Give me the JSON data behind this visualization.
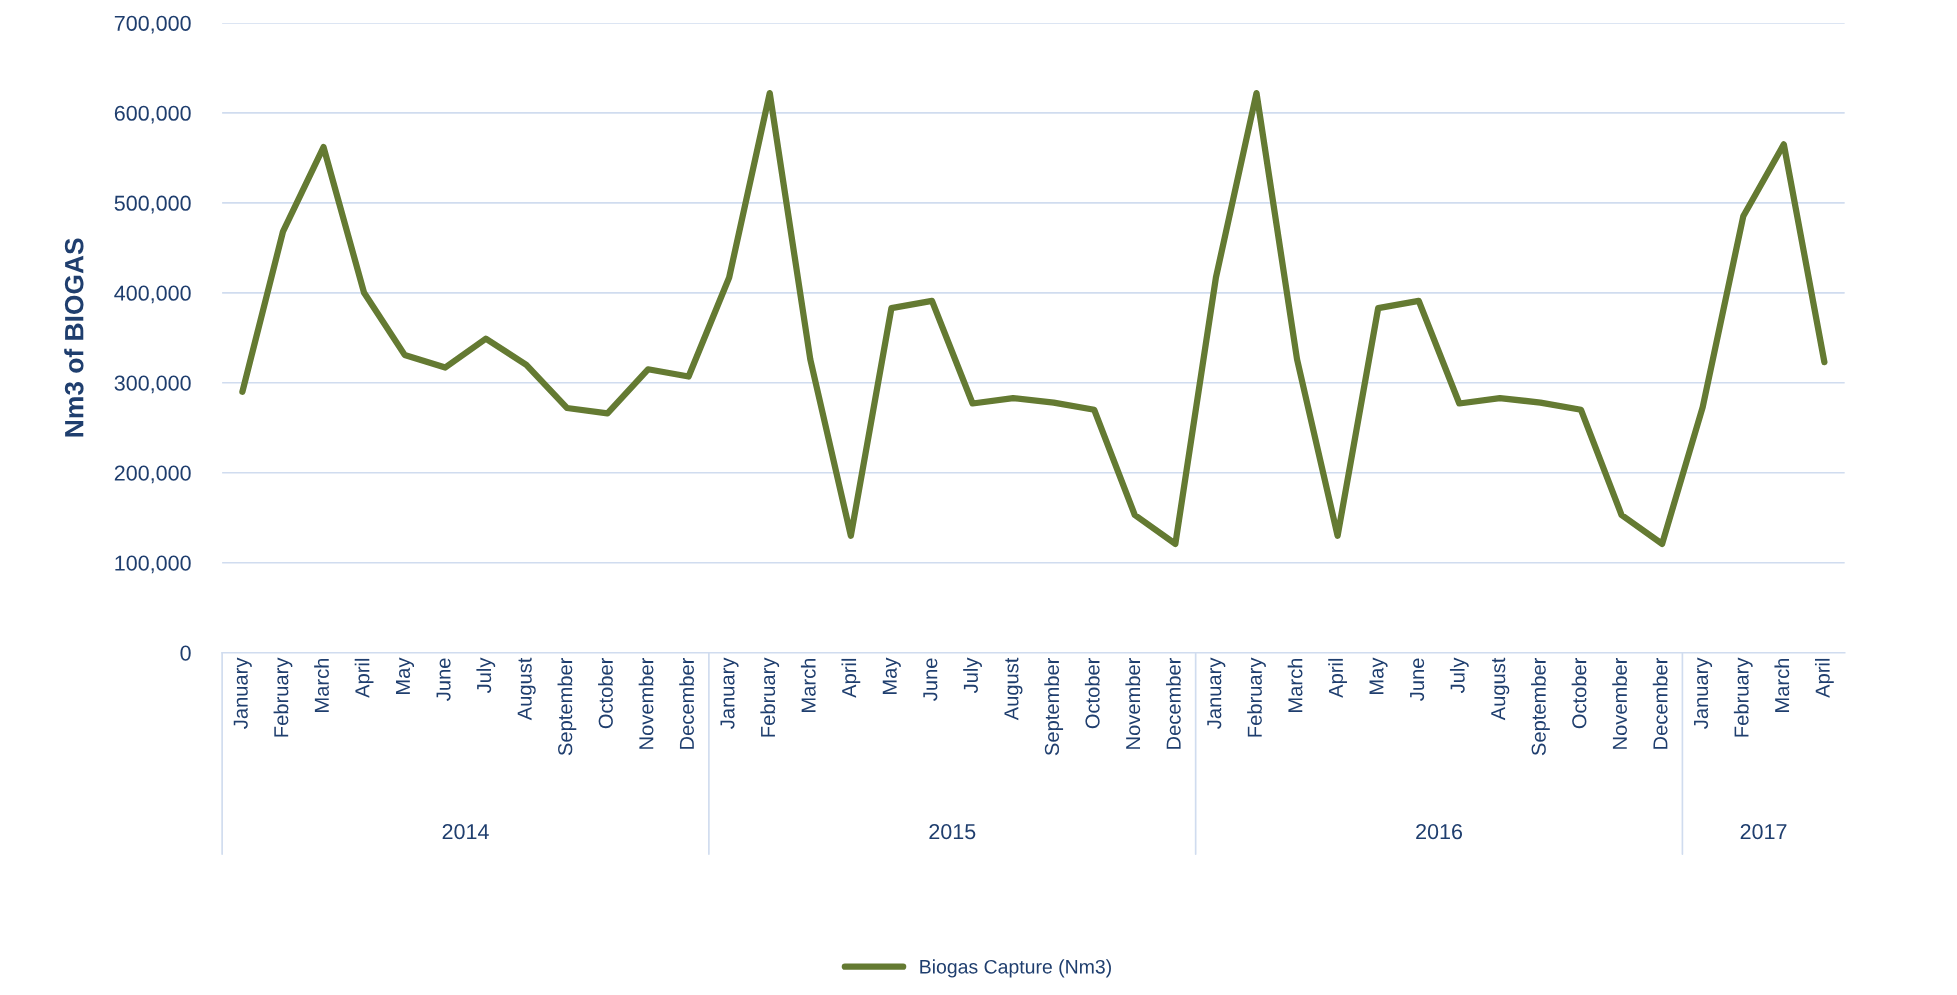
{
  "chart_data": {
    "type": "line",
    "ylabel": "Nm3 of BIOGAS",
    "categories": [
      "January",
      "February",
      "March",
      "April",
      "May",
      "June",
      "July",
      "August",
      "September",
      "October",
      "November",
      "December",
      "January",
      "February",
      "March",
      "April",
      "May",
      "June",
      "July",
      "August",
      "September",
      "October",
      "November",
      "December",
      "January",
      "February",
      "March",
      "April",
      "May",
      "June",
      "July",
      "August",
      "September",
      "October",
      "November",
      "December",
      "January",
      "February",
      "March",
      "April"
    ],
    "series": [
      {
        "name": "Biogas Capture (Nm3)",
        "color": "#647a32",
        "values": [
          290000,
          468000,
          562000,
          400000,
          331000,
          317000,
          349000,
          320000,
          272000,
          266000,
          315000,
          307000,
          417000,
          622000,
          326000,
          130000,
          383000,
          391000,
          277000,
          283000,
          278000,
          270000,
          153000,
          121000,
          417000,
          622000,
          326000,
          130000,
          383000,
          391000,
          277000,
          283000,
          278000,
          270000,
          153000,
          121000,
          273000,
          485000,
          565000,
          323000
        ]
      }
    ],
    "annotations": [
      "2014",
      "2015",
      "2016",
      "2017"
    ],
    "ylim": [
      0,
      700000
    ],
    "yticks": [
      {
        "value": 0,
        "label": "0"
      },
      {
        "value": 100000,
        "label": "100,000"
      },
      {
        "value": 200000,
        "label": "200,000"
      },
      {
        "value": 300000,
        "label": "300,000"
      },
      {
        "value": 400000,
        "label": "400,000"
      },
      {
        "value": 500000,
        "label": "500,000"
      },
      {
        "value": 600000,
        "label": "600,000"
      },
      {
        "value": 700000,
        "label": "700,000"
      }
    ],
    "grid": "y",
    "legend": "bottom",
    "marker": "none",
    "line_style": "solid"
  }
}
